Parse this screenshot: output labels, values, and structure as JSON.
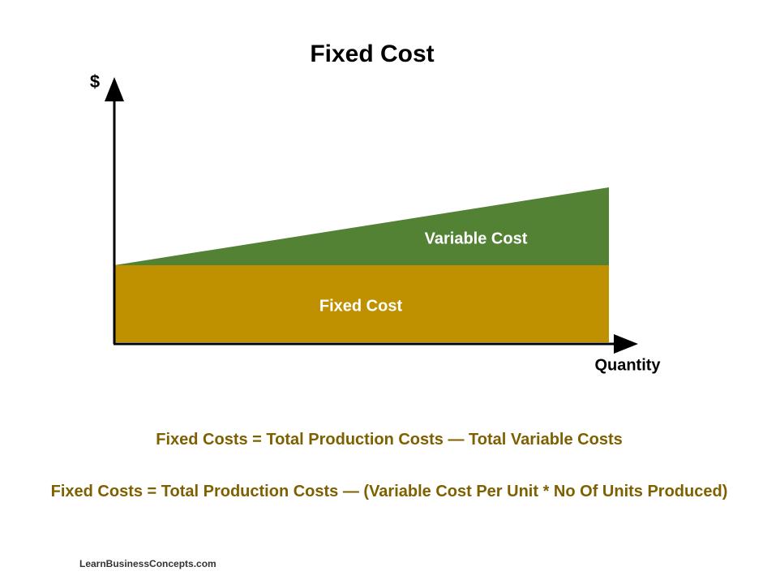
{
  "title": "Fixed Cost",
  "axes": {
    "y_label": "$",
    "x_label": "Quantity"
  },
  "regions": {
    "variable": "Variable Cost",
    "fixed": "Fixed Cost"
  },
  "formulas": [
    "Fixed Costs = Total Production Costs — Total Variable Costs",
    "Fixed Costs = Total Production Costs — (Variable Cost Per Unit * No Of Units Produced)"
  ],
  "footer": "LearnBusinessConcepts.com"
}
